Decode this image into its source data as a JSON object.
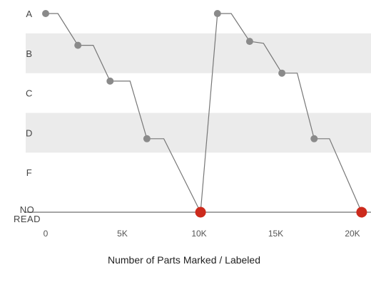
{
  "chart_data": {
    "type": "line",
    "xlabel": "Number of Parts Marked / Labeled",
    "x_ticks": [
      {
        "value": 0,
        "label": "0"
      },
      {
        "value": 5000,
        "label": "5K"
      },
      {
        "value": 10000,
        "label": "10K"
      },
      {
        "value": 15000,
        "label": "15K"
      },
      {
        "value": 20000,
        "label": "20K"
      }
    ],
    "grades": [
      {
        "value": 5,
        "label": "A"
      },
      {
        "value": 4,
        "label": "B"
      },
      {
        "value": 3,
        "label": "C"
      },
      {
        "value": 2,
        "label": "D"
      },
      {
        "value": 1,
        "label": "F"
      },
      {
        "value": 0,
        "label": "NO READ",
        "lines": [
          "NO",
          "READ"
        ]
      }
    ],
    "xlim": [
      0,
      20000
    ],
    "ylim": [
      0,
      5
    ],
    "shaded_bands": [
      [
        3.5,
        4.5
      ],
      [
        1.5,
        2.5
      ]
    ],
    "series": [
      {
        "points": [
          {
            "x": 0,
            "y": 5
          },
          {
            "x": 800,
            "y": 5
          },
          {
            "x": 2100,
            "y": 4.2
          },
          {
            "x": 3100,
            "y": 4.2
          },
          {
            "x": 4200,
            "y": 3.3
          },
          {
            "x": 5500,
            "y": 3.3
          },
          {
            "x": 6600,
            "y": 1.85
          },
          {
            "x": 7700,
            "y": 1.85
          },
          {
            "x": 10100,
            "y": 0
          },
          {
            "x": 11200,
            "y": 5
          },
          {
            "x": 12100,
            "y": 5
          },
          {
            "x": 13300,
            "y": 4.3
          },
          {
            "x": 14200,
            "y": 4.25
          },
          {
            "x": 15400,
            "y": 3.5
          },
          {
            "x": 16400,
            "y": 3.5
          },
          {
            "x": 17500,
            "y": 1.85
          },
          {
            "x": 18500,
            "y": 1.85
          },
          {
            "x": 20600,
            "y": 0
          }
        ],
        "markers": [
          {
            "x": 0,
            "y": 5,
            "kind": "grade"
          },
          {
            "x": 2100,
            "y": 4.2,
            "kind": "grade"
          },
          {
            "x": 4200,
            "y": 3.3,
            "kind": "grade"
          },
          {
            "x": 6600,
            "y": 1.85,
            "kind": "grade"
          },
          {
            "x": 10100,
            "y": 0,
            "kind": "no-read"
          },
          {
            "x": 11200,
            "y": 5,
            "kind": "grade"
          },
          {
            "x": 13300,
            "y": 4.3,
            "kind": "grade"
          },
          {
            "x": 15400,
            "y": 3.5,
            "kind": "grade"
          },
          {
            "x": 17500,
            "y": 1.85,
            "kind": "grade"
          },
          {
            "x": 20600,
            "y": 0,
            "kind": "no-read"
          }
        ]
      }
    ],
    "colors": {
      "band": "#ebebeb",
      "line": "#777777",
      "marker": "#8a8a8a",
      "no_read_marker": "#cc2a1c",
      "baseline": "#888888"
    }
  }
}
